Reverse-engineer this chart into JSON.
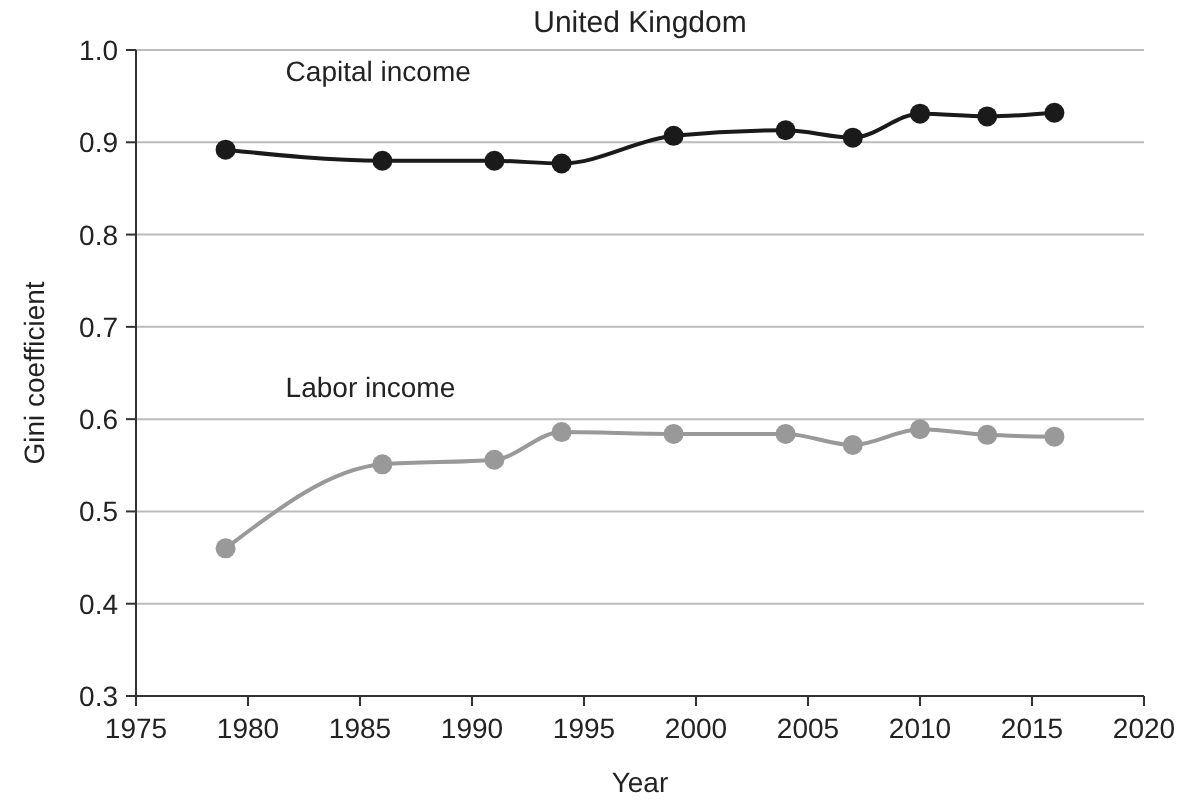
{
  "chart_data": {
    "type": "line",
    "title": "United Kingdom",
    "xlabel": "Year",
    "ylabel": "Gini coefficient",
    "x": [
      1979,
      1986,
      1991,
      1994,
      1999,
      2004,
      2007,
      2010,
      2013,
      2016
    ],
    "series": [
      {
        "name": "Capital income",
        "color": "#1a1a1a",
        "values": [
          0.892,
          0.88,
          0.88,
          0.877,
          0.907,
          0.913,
          0.905,
          0.931,
          0.928,
          0.932
        ]
      },
      {
        "name": "Labor income",
        "color": "#999999",
        "values": [
          0.46,
          0.551,
          0.556,
          0.586,
          0.584,
          0.584,
          0.572,
          0.589,
          0.583,
          0.581
        ]
      }
    ],
    "xlim": [
      1975,
      2020
    ],
    "xticks": [
      1975,
      1980,
      1985,
      1990,
      1995,
      2000,
      2005,
      2010,
      2015,
      2020
    ],
    "ylim": [
      0.3,
      1.0
    ],
    "yticks": [
      {
        "value": 0.3,
        "label": "0.3"
      },
      {
        "value": 0.4,
        "label": "0.4"
      },
      {
        "value": 0.5,
        "label": "0.5"
      },
      {
        "value": 0.6,
        "label": "0.6"
      },
      {
        "value": 0.7,
        "label": "0.7"
      },
      {
        "value": 0.8,
        "label": "0.8"
      },
      {
        "value": 0.9,
        "label": "0.9"
      },
      {
        "value": 1.0,
        "label": "1.0"
      }
    ],
    "grid": "y",
    "legend": false,
    "marker": "circle",
    "line_style": "solid"
  }
}
